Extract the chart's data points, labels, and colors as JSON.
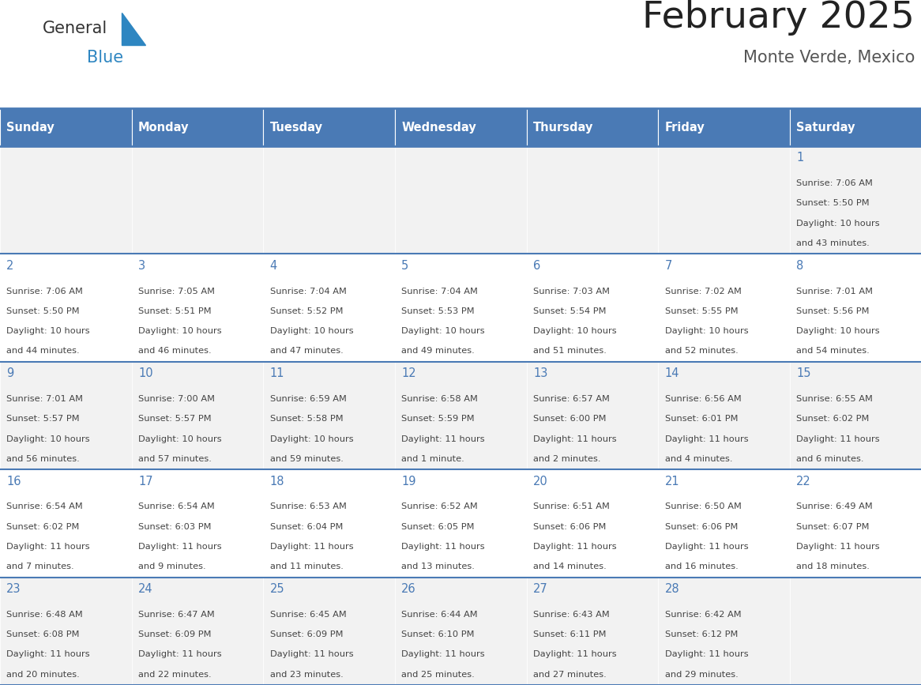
{
  "title": "February 2025",
  "subtitle": "Monte Verde, Mexico",
  "days_of_week": [
    "Sunday",
    "Monday",
    "Tuesday",
    "Wednesday",
    "Thursday",
    "Friday",
    "Saturday"
  ],
  "header_bg": "#4a7ab5",
  "header_text": "#ffffff",
  "cell_bg_odd": "#f2f2f2",
  "cell_bg_even": "#ffffff",
  "border_color": "#4a7ab5",
  "day_num_color": "#4a7ab5",
  "text_color": "#444444",
  "logo_general_color": "#333333",
  "logo_blue_color": "#2e86c1",
  "logo_triangle_color": "#2e86c1",
  "title_color": "#222222",
  "subtitle_color": "#555555",
  "calendar_data": [
    [
      null,
      null,
      null,
      null,
      null,
      null,
      {
        "day": 1,
        "sunrise": "7:06 AM",
        "sunset": "5:50 PM",
        "daylight": "10 hours and 43 minutes."
      }
    ],
    [
      {
        "day": 2,
        "sunrise": "7:06 AM",
        "sunset": "5:50 PM",
        "daylight": "10 hours and 44 minutes."
      },
      {
        "day": 3,
        "sunrise": "7:05 AM",
        "sunset": "5:51 PM",
        "daylight": "10 hours and 46 minutes."
      },
      {
        "day": 4,
        "sunrise": "7:04 AM",
        "sunset": "5:52 PM",
        "daylight": "10 hours and 47 minutes."
      },
      {
        "day": 5,
        "sunrise": "7:04 AM",
        "sunset": "5:53 PM",
        "daylight": "10 hours and 49 minutes."
      },
      {
        "day": 6,
        "sunrise": "7:03 AM",
        "sunset": "5:54 PM",
        "daylight": "10 hours and 51 minutes."
      },
      {
        "day": 7,
        "sunrise": "7:02 AM",
        "sunset": "5:55 PM",
        "daylight": "10 hours and 52 minutes."
      },
      {
        "day": 8,
        "sunrise": "7:01 AM",
        "sunset": "5:56 PM",
        "daylight": "10 hours and 54 minutes."
      }
    ],
    [
      {
        "day": 9,
        "sunrise": "7:01 AM",
        "sunset": "5:57 PM",
        "daylight": "10 hours and 56 minutes."
      },
      {
        "day": 10,
        "sunrise": "7:00 AM",
        "sunset": "5:57 PM",
        "daylight": "10 hours and 57 minutes."
      },
      {
        "day": 11,
        "sunrise": "6:59 AM",
        "sunset": "5:58 PM",
        "daylight": "10 hours and 59 minutes."
      },
      {
        "day": 12,
        "sunrise": "6:58 AM",
        "sunset": "5:59 PM",
        "daylight": "11 hours and 1 minute."
      },
      {
        "day": 13,
        "sunrise": "6:57 AM",
        "sunset": "6:00 PM",
        "daylight": "11 hours and 2 minutes."
      },
      {
        "day": 14,
        "sunrise": "6:56 AM",
        "sunset": "6:01 PM",
        "daylight": "11 hours and 4 minutes."
      },
      {
        "day": 15,
        "sunrise": "6:55 AM",
        "sunset": "6:02 PM",
        "daylight": "11 hours and 6 minutes."
      }
    ],
    [
      {
        "day": 16,
        "sunrise": "6:54 AM",
        "sunset": "6:02 PM",
        "daylight": "11 hours and 7 minutes."
      },
      {
        "day": 17,
        "sunrise": "6:54 AM",
        "sunset": "6:03 PM",
        "daylight": "11 hours and 9 minutes."
      },
      {
        "day": 18,
        "sunrise": "6:53 AM",
        "sunset": "6:04 PM",
        "daylight": "11 hours and 11 minutes."
      },
      {
        "day": 19,
        "sunrise": "6:52 AM",
        "sunset": "6:05 PM",
        "daylight": "11 hours and 13 minutes."
      },
      {
        "day": 20,
        "sunrise": "6:51 AM",
        "sunset": "6:06 PM",
        "daylight": "11 hours and 14 minutes."
      },
      {
        "day": 21,
        "sunrise": "6:50 AM",
        "sunset": "6:06 PM",
        "daylight": "11 hours and 16 minutes."
      },
      {
        "day": 22,
        "sunrise": "6:49 AM",
        "sunset": "6:07 PM",
        "daylight": "11 hours and 18 minutes."
      }
    ],
    [
      {
        "day": 23,
        "sunrise": "6:48 AM",
        "sunset": "6:08 PM",
        "daylight": "11 hours and 20 minutes."
      },
      {
        "day": 24,
        "sunrise": "6:47 AM",
        "sunset": "6:09 PM",
        "daylight": "11 hours and 22 minutes."
      },
      {
        "day": 25,
        "sunrise": "6:45 AM",
        "sunset": "6:09 PM",
        "daylight": "11 hours and 23 minutes."
      },
      {
        "day": 26,
        "sunrise": "6:44 AM",
        "sunset": "6:10 PM",
        "daylight": "11 hours and 25 minutes."
      },
      {
        "day": 27,
        "sunrise": "6:43 AM",
        "sunset": "6:11 PM",
        "daylight": "11 hours and 27 minutes."
      },
      {
        "day": 28,
        "sunrise": "6:42 AM",
        "sunset": "6:12 PM",
        "daylight": "11 hours and 29 minutes."
      },
      null
    ]
  ]
}
